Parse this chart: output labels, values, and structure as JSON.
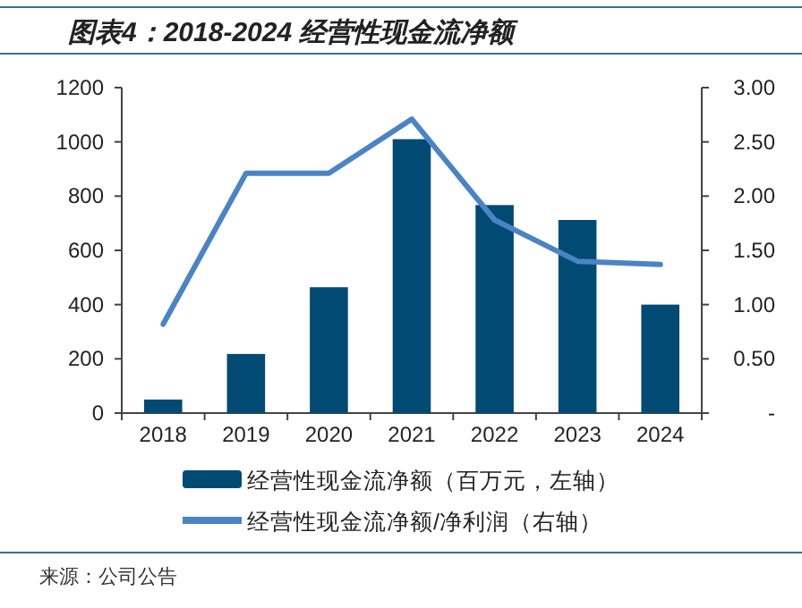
{
  "chart_data": {
    "type": "bar",
    "title": "图表4：2018-2024 经营性现金流净额",
    "categories": [
      "2018",
      "2019",
      "2020",
      "2021",
      "2022",
      "2023",
      "2024"
    ],
    "series": [
      {
        "name": "经营性现金流净额（百万元，左轴）",
        "color": "#004a73",
        "values": [
          50,
          218,
          464,
          1010,
          767,
          712,
          400
        ]
      },
      {
        "name": "经营性现金流净额/净利润（右轴）",
        "type": "line",
        "axis": "y2",
        "color": "#4a84c4",
        "values": [
          0.82,
          2.21,
          2.21,
          2.71,
          1.78,
          1.4,
          1.37
        ]
      }
    ],
    "ylim": [
      0,
      1200
    ],
    "yticks": [
      0,
      200,
      400,
      600,
      800,
      1000,
      1200
    ],
    "y2lim": [
      0,
      3
    ],
    "y2ticks": [
      {
        "value": 0,
        "label": "-"
      },
      {
        "value": 0.5,
        "label": "0.50"
      },
      {
        "value": 1,
        "label": "1.00"
      },
      {
        "value": 1.5,
        "label": "1.50"
      },
      {
        "value": 2,
        "label": "2.00"
      },
      {
        "value": 2.5,
        "label": "2.50"
      },
      {
        "value": 3,
        "label": "3.00"
      }
    ],
    "legend": "bottom",
    "grid": false,
    "marker": "none",
    "line_style": "solid",
    "annotations": [
      "来源：公司公告"
    ]
  }
}
